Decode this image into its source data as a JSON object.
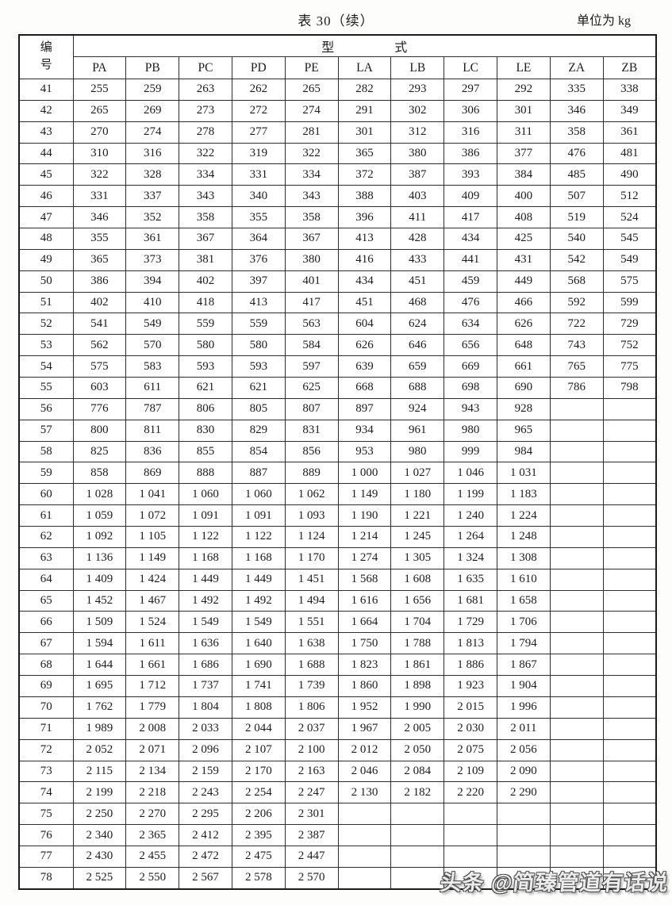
{
  "page": {
    "title": "表 30（续）",
    "unit_label": "单位为 kg",
    "watermark": "头条 @简臻管道有话说"
  },
  "table": {
    "row_header": {
      "line1": "编",
      "line2": "号"
    },
    "group_header": {
      "left": "型",
      "right": "式"
    },
    "columns": [
      "PA",
      "PB",
      "PC",
      "PD",
      "PE",
      "LA",
      "LB",
      "LC",
      "LE",
      "ZA",
      "ZB"
    ],
    "rows": [
      {
        "id": "41",
        "values": [
          "255",
          "259",
          "263",
          "262",
          "265",
          "282",
          "293",
          "297",
          "292",
          "335",
          "338"
        ]
      },
      {
        "id": "42",
        "values": [
          "265",
          "269",
          "273",
          "272",
          "274",
          "291",
          "302",
          "306",
          "301",
          "346",
          "349"
        ]
      },
      {
        "id": "43",
        "values": [
          "270",
          "274",
          "278",
          "277",
          "281",
          "301",
          "312",
          "316",
          "311",
          "358",
          "361"
        ]
      },
      {
        "id": "44",
        "values": [
          "310",
          "316",
          "322",
          "319",
          "322",
          "365",
          "380",
          "386",
          "377",
          "476",
          "481"
        ]
      },
      {
        "id": "45",
        "values": [
          "322",
          "328",
          "334",
          "331",
          "334",
          "372",
          "387",
          "393",
          "384",
          "485",
          "490"
        ]
      },
      {
        "id": "46",
        "values": [
          "331",
          "337",
          "343",
          "340",
          "343",
          "388",
          "403",
          "409",
          "400",
          "507",
          "512"
        ]
      },
      {
        "id": "47",
        "values": [
          "346",
          "352",
          "358",
          "355",
          "358",
          "396",
          "411",
          "417",
          "408",
          "519",
          "524"
        ]
      },
      {
        "id": "48",
        "values": [
          "355",
          "361",
          "367",
          "364",
          "367",
          "413",
          "428",
          "434",
          "425",
          "540",
          "545"
        ]
      },
      {
        "id": "49",
        "values": [
          "365",
          "373",
          "381",
          "376",
          "380",
          "416",
          "433",
          "441",
          "431",
          "542",
          "549"
        ]
      },
      {
        "id": "50",
        "values": [
          "386",
          "394",
          "402",
          "397",
          "401",
          "434",
          "451",
          "459",
          "449",
          "568",
          "575"
        ]
      },
      {
        "id": "51",
        "values": [
          "402",
          "410",
          "418",
          "413",
          "417",
          "451",
          "468",
          "476",
          "466",
          "592",
          "599"
        ]
      },
      {
        "id": "52",
        "values": [
          "541",
          "549",
          "559",
          "559",
          "563",
          "604",
          "624",
          "634",
          "626",
          "722",
          "729"
        ]
      },
      {
        "id": "53",
        "values": [
          "562",
          "570",
          "580",
          "580",
          "584",
          "626",
          "646",
          "656",
          "648",
          "743",
          "752"
        ]
      },
      {
        "id": "54",
        "values": [
          "575",
          "583",
          "593",
          "593",
          "597",
          "639",
          "659",
          "669",
          "661",
          "765",
          "775"
        ]
      },
      {
        "id": "55",
        "values": [
          "603",
          "611",
          "621",
          "621",
          "625",
          "668",
          "688",
          "698",
          "690",
          "786",
          "798"
        ]
      },
      {
        "id": "56",
        "values": [
          "776",
          "787",
          "806",
          "805",
          "807",
          "897",
          "924",
          "943",
          "928",
          "",
          ""
        ]
      },
      {
        "id": "57",
        "values": [
          "800",
          "811",
          "830",
          "829",
          "831",
          "934",
          "961",
          "980",
          "965",
          "",
          ""
        ]
      },
      {
        "id": "58",
        "values": [
          "825",
          "836",
          "855",
          "854",
          "856",
          "953",
          "980",
          "999",
          "984",
          "",
          ""
        ]
      },
      {
        "id": "59",
        "values": [
          "858",
          "869",
          "888",
          "887",
          "889",
          "1 000",
          "1 027",
          "1 046",
          "1 031",
          "",
          ""
        ]
      },
      {
        "id": "60",
        "values": [
          "1 028",
          "1 041",
          "1 060",
          "1 060",
          "1 062",
          "1 149",
          "1 180",
          "1 199",
          "1 183",
          "",
          ""
        ]
      },
      {
        "id": "61",
        "values": [
          "1 059",
          "1 072",
          "1 091",
          "1 091",
          "1 093",
          "1 190",
          "1 221",
          "1 240",
          "1 224",
          "",
          ""
        ]
      },
      {
        "id": "62",
        "values": [
          "1 092",
          "1 105",
          "1 122",
          "1 122",
          "1 124",
          "1 214",
          "1 245",
          "1 264",
          "1 248",
          "",
          ""
        ]
      },
      {
        "id": "63",
        "values": [
          "1 136",
          "1 149",
          "1 168",
          "1 168",
          "1 170",
          "1 274",
          "1 305",
          "1 324",
          "1 308",
          "",
          ""
        ]
      },
      {
        "id": "64",
        "values": [
          "1 409",
          "1 424",
          "1 449",
          "1 449",
          "1 451",
          "1 568",
          "1 608",
          "1 635",
          "1 610",
          "",
          ""
        ]
      },
      {
        "id": "65",
        "values": [
          "1 452",
          "1 467",
          "1 492",
          "1 492",
          "1 494",
          "1 616",
          "1 656",
          "1 681",
          "1 658",
          "",
          ""
        ]
      },
      {
        "id": "66",
        "values": [
          "1 509",
          "1 524",
          "1 549",
          "1 549",
          "1 551",
          "1 664",
          "1 704",
          "1 729",
          "1 706",
          "",
          ""
        ]
      },
      {
        "id": "67",
        "values": [
          "1 594",
          "1 611",
          "1 636",
          "1 640",
          "1 638",
          "1 750",
          "1 788",
          "1 813",
          "1 794",
          "",
          ""
        ]
      },
      {
        "id": "68",
        "values": [
          "1 644",
          "1 661",
          "1 686",
          "1 690",
          "1 688",
          "1 823",
          "1 861",
          "1 886",
          "1 867",
          "",
          ""
        ]
      },
      {
        "id": "69",
        "values": [
          "1 695",
          "1 712",
          "1 737",
          "1 741",
          "1 739",
          "1 860",
          "1 898",
          "1 923",
          "1 904",
          "",
          ""
        ]
      },
      {
        "id": "70",
        "values": [
          "1 762",
          "1 779",
          "1 804",
          "1 808",
          "1 806",
          "1 952",
          "1 990",
          "2 015",
          "1 996",
          "",
          ""
        ]
      },
      {
        "id": "71",
        "values": [
          "1 989",
          "2 008",
          "2 033",
          "2 044",
          "2 037",
          "1 967",
          "2 005",
          "2 030",
          "2 011",
          "",
          ""
        ]
      },
      {
        "id": "72",
        "values": [
          "2 052",
          "2 071",
          "2 096",
          "2 107",
          "2 100",
          "2 012",
          "2 050",
          "2 075",
          "2 056",
          "",
          ""
        ]
      },
      {
        "id": "73",
        "values": [
          "2 115",
          "2 134",
          "2 159",
          "2 170",
          "2 163",
          "2 046",
          "2 084",
          "2 109",
          "2 090",
          "",
          ""
        ]
      },
      {
        "id": "74",
        "values": [
          "2 199",
          "2 218",
          "2 243",
          "2 254",
          "2 247",
          "2 130",
          "2 182",
          "2 220",
          "2 290",
          "",
          ""
        ]
      },
      {
        "id": "75",
        "values": [
          "2 250",
          "2 270",
          "2 295",
          "2 206",
          "2 301",
          "",
          "",
          "",
          "",
          "",
          ""
        ]
      },
      {
        "id": "76",
        "values": [
          "2 340",
          "2 365",
          "2 412",
          "2 395",
          "2 387",
          "",
          "",
          "",
          "",
          "",
          ""
        ]
      },
      {
        "id": "77",
        "values": [
          "2 430",
          "2 455",
          "2 472",
          "2 475",
          "2 447",
          "",
          "",
          "",
          "",
          "",
          ""
        ]
      },
      {
        "id": "78",
        "values": [
          "2 525",
          "2 550",
          "2 567",
          "2 578",
          "2 570",
          "",
          "",
          "",
          "",
          "",
          ""
        ]
      }
    ]
  }
}
